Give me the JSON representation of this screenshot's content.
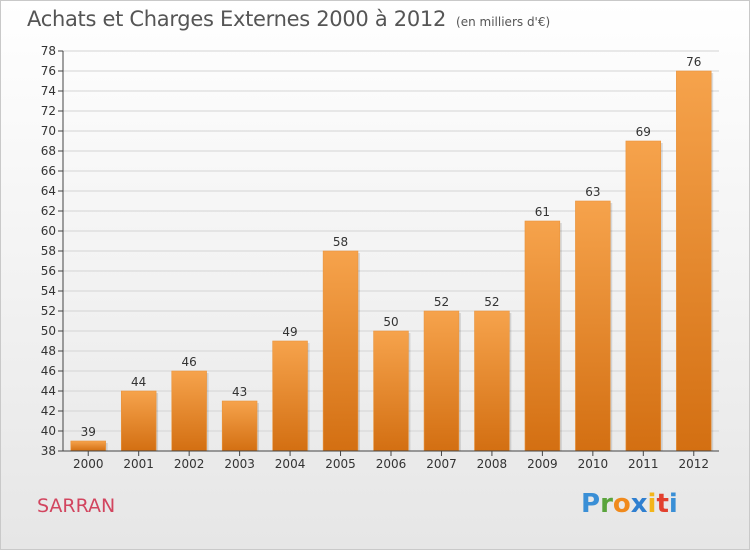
{
  "header": {
    "title": "Achats et Charges Externes 2000 à 2012",
    "unit": "(en milliers d'€)"
  },
  "place": "SARRAN",
  "brand": {
    "letters": [
      "P",
      "r",
      "o",
      "x",
      "i",
      "t",
      "i"
    ],
    "colors": [
      "#3a8fd6",
      "#5aa43c",
      "#f08a1c",
      "#2f7fd0",
      "#f3b51a",
      "#e2402e",
      "#3a8fd6"
    ]
  },
  "colors": {
    "bar_top": "#f6a34c",
    "bar_bottom": "#d36f12",
    "grid": "#d4d4d4",
    "axis": "#444444"
  },
  "chart_data": {
    "type": "bar",
    "title": "Achats et Charges Externes 2000 à 2012",
    "subtitle": "(en milliers d'€)",
    "categories": [
      "2000",
      "2001",
      "2002",
      "2003",
      "2004",
      "2005",
      "2006",
      "2007",
      "2008",
      "2009",
      "2010",
      "2011",
      "2012"
    ],
    "values": [
      39,
      44,
      46,
      43,
      49,
      58,
      50,
      52,
      52,
      61,
      63,
      69,
      76
    ],
    "ylim": [
      38,
      78
    ],
    "yticks": [
      38,
      40,
      42,
      44,
      46,
      48,
      50,
      52,
      54,
      56,
      58,
      60,
      62,
      64,
      66,
      68,
      70,
      72,
      74,
      76,
      78
    ],
    "grid": true,
    "data_labels": true
  }
}
